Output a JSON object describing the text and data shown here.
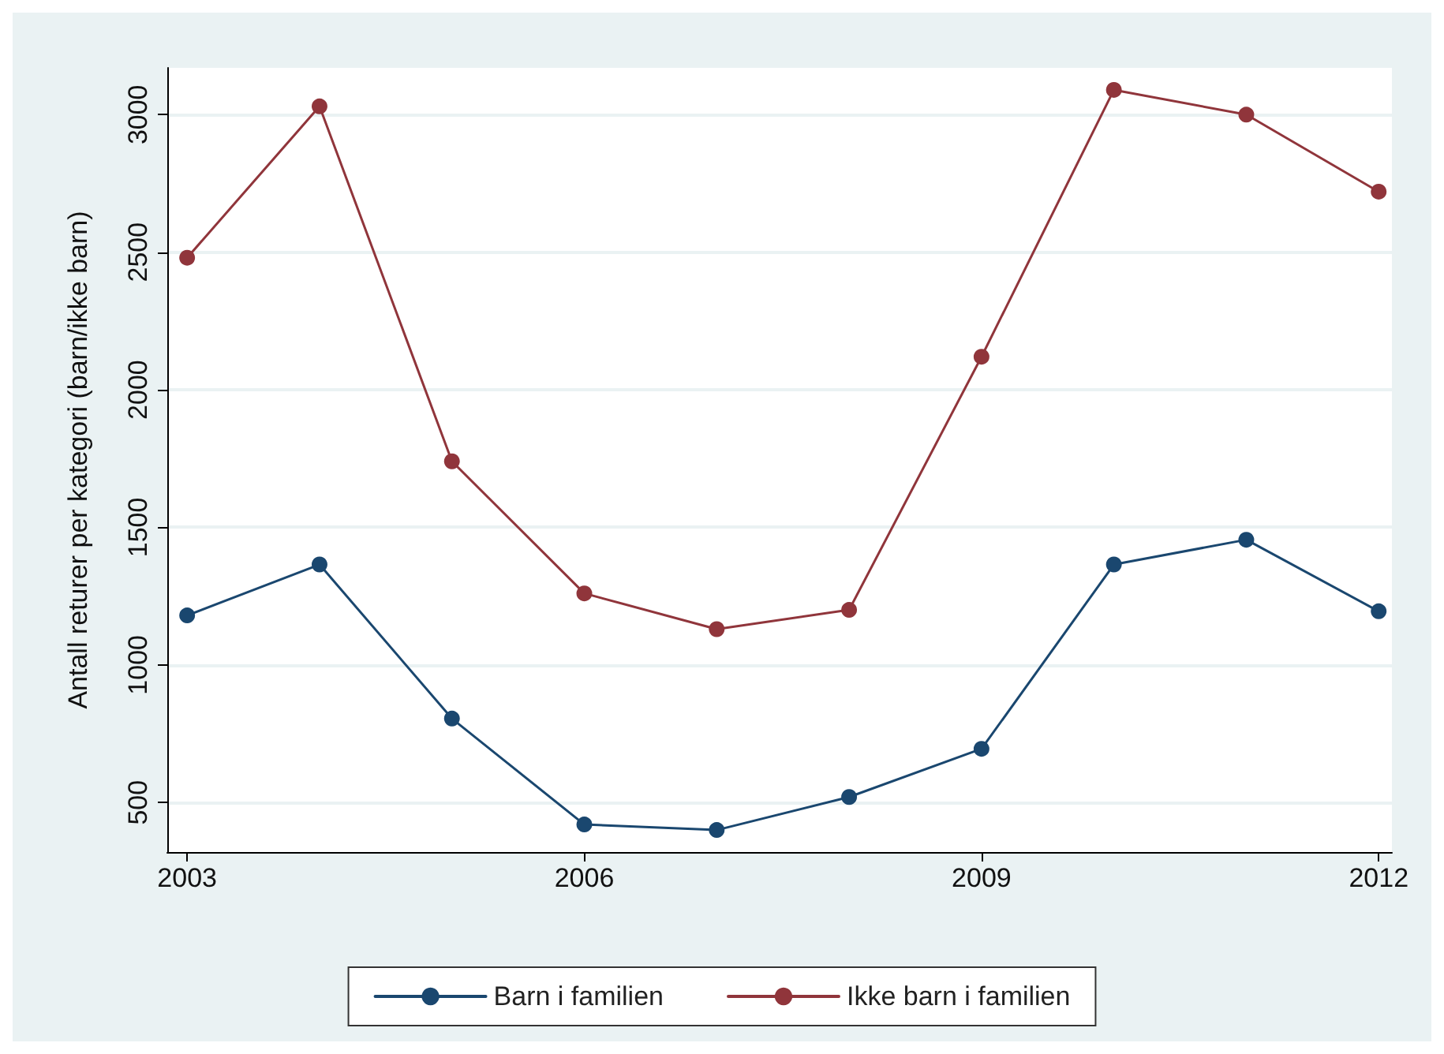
{
  "chart_data": {
    "type": "line",
    "ylabel": "Antall returer per kategori (barn/ikke barn)",
    "x": [
      2003,
      2004,
      2005,
      2006,
      2007,
      2008,
      2009,
      2010,
      2011,
      2012
    ],
    "series": [
      {
        "name": "Barn i familien",
        "color": "#1a476f",
        "values": [
          1180,
          1365,
          805,
          420,
          400,
          520,
          695,
          1365,
          1455,
          1195
        ]
      },
      {
        "name": "Ikke barn i familien",
        "color": "#90353b",
        "values": [
          2480,
          3030,
          1740,
          1260,
          1130,
          1200,
          2120,
          3090,
          3000,
          2720
        ]
      }
    ],
    "xlim": [
      2002.85,
      2012.1
    ],
    "xticks": [
      2003,
      2006,
      2009,
      2012
    ],
    "ylim": [
      320,
      3170
    ],
    "yticks": [
      500,
      1000,
      1500,
      2000,
      2500,
      3000
    ],
    "grid": "y",
    "legend": "bottom",
    "marker": "circle",
    "line_style": "solid"
  }
}
